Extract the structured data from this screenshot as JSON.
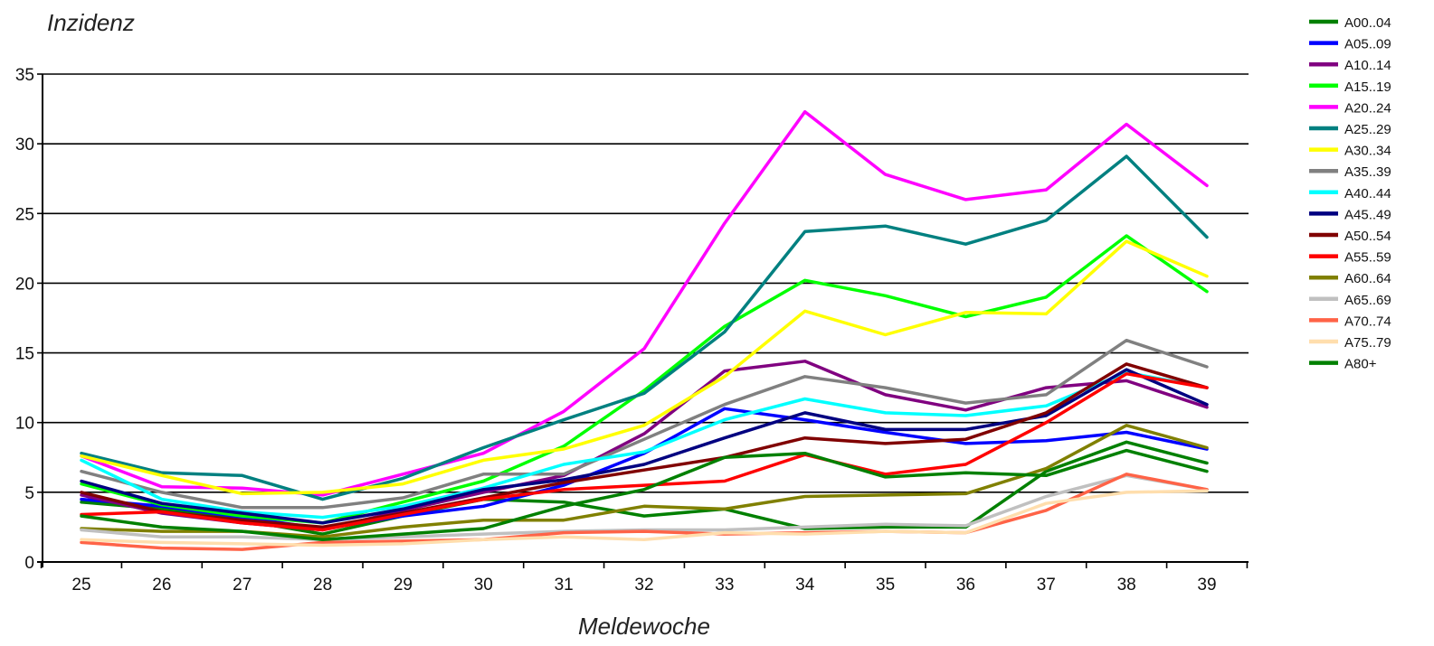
{
  "chart_data": {
    "type": "line",
    "title": "",
    "xlabel": "Meldewoche",
    "ylabel": "Inzidenz",
    "x": [
      25,
      26,
      27,
      28,
      29,
      30,
      31,
      32,
      33,
      34,
      35,
      36,
      37,
      38,
      39
    ],
    "ylim": [
      0,
      35
    ],
    "yticks": [
      0,
      5,
      10,
      15,
      20,
      25,
      30,
      35
    ],
    "grid": "horizontal",
    "legend_position": "right",
    "series": [
      {
        "name": "A00..04",
        "color": "#008000",
        "values": [
          4.3,
          3.8,
          3.0,
          2.0,
          3.3,
          4.5,
          4.3,
          3.3,
          3.8,
          2.4,
          2.5,
          2.5,
          6.5,
          8.6,
          7.1
        ]
      },
      {
        "name": "A05..09",
        "color": "#0000FF",
        "values": [
          4.5,
          4.0,
          3.2,
          2.4,
          3.3,
          4.0,
          5.5,
          7.8,
          11.0,
          10.2,
          9.3,
          8.5,
          8.7,
          9.3,
          8.1
        ]
      },
      {
        "name": "A10..14",
        "color": "#800080",
        "values": [
          4.8,
          3.5,
          2.8,
          2.3,
          3.7,
          5.0,
          6.2,
          9.2,
          13.7,
          14.4,
          12.0,
          10.9,
          12.5,
          13.0,
          11.1
        ]
      },
      {
        "name": "A15..19",
        "color": "#00FF00",
        "values": [
          5.6,
          4.1,
          3.3,
          2.8,
          4.3,
          5.8,
          8.3,
          12.3,
          16.9,
          20.2,
          19.1,
          17.6,
          19.0,
          23.4,
          19.4
        ]
      },
      {
        "name": "A20..24",
        "color": "#FF00FF",
        "values": [
          7.6,
          5.4,
          5.3,
          4.8,
          6.3,
          7.8,
          10.8,
          15.3,
          24.3,
          32.3,
          27.8,
          26.0,
          26.7,
          31.4,
          27.0
        ]
      },
      {
        "name": "A25..29",
        "color": "#008080",
        "values": [
          7.8,
          6.4,
          6.2,
          4.5,
          6.0,
          8.2,
          10.2,
          12.1,
          16.5,
          23.7,
          24.1,
          22.8,
          24.5,
          29.1,
          23.3
        ]
      },
      {
        "name": "A30..34",
        "color": "#FFFF00",
        "values": [
          7.6,
          6.2,
          4.9,
          5.0,
          5.6,
          7.3,
          8.1,
          9.8,
          13.3,
          18.0,
          16.3,
          17.9,
          17.8,
          23.0,
          20.5
        ]
      },
      {
        "name": "A35..39",
        "color": "#808080",
        "values": [
          6.5,
          5.0,
          3.9,
          3.9,
          4.6,
          6.3,
          6.3,
          8.8,
          11.3,
          13.3,
          12.5,
          11.4,
          12.0,
          15.9,
          14.0
        ]
      },
      {
        "name": "A40..44",
        "color": "#00FFFF",
        "values": [
          7.3,
          4.5,
          3.6,
          3.2,
          4.0,
          5.3,
          7.0,
          7.9,
          10.2,
          11.7,
          10.7,
          10.5,
          11.2,
          13.6,
          12.5
        ]
      },
      {
        "name": "A45..49",
        "color": "#000080",
        "values": [
          5.8,
          4.2,
          3.5,
          2.8,
          3.8,
          5.2,
          5.9,
          7.0,
          8.9,
          10.7,
          9.5,
          9.5,
          10.5,
          13.8,
          11.3
        ]
      },
      {
        "name": "A50..54",
        "color": "#800000",
        "values": [
          5.0,
          3.6,
          3.0,
          2.5,
          3.5,
          4.6,
          5.7,
          6.6,
          7.5,
          8.9,
          8.5,
          8.8,
          10.7,
          14.2,
          12.5
        ]
      },
      {
        "name": "A55..59",
        "color": "#FF0000",
        "values": [
          3.4,
          3.6,
          2.8,
          2.3,
          3.4,
          4.5,
          5.2,
          5.5,
          5.8,
          7.7,
          6.3,
          7.0,
          10.0,
          13.5,
          12.5
        ]
      },
      {
        "name": "A60..64",
        "color": "#808000",
        "values": [
          2.4,
          2.2,
          2.2,
          1.8,
          2.5,
          3.0,
          3.0,
          4.0,
          3.8,
          4.7,
          4.8,
          4.9,
          6.7,
          9.8,
          8.2
        ]
      },
      {
        "name": "A65..69",
        "color": "#C0C0C0",
        "values": [
          2.3,
          1.8,
          1.8,
          1.6,
          1.8,
          2.0,
          2.2,
          2.3,
          2.3,
          2.5,
          2.7,
          2.6,
          4.7,
          6.2,
          5.2
        ]
      },
      {
        "name": "A70..74",
        "color": "#FF6347",
        "values": [
          1.4,
          1.0,
          0.9,
          1.4,
          1.5,
          1.6,
          2.1,
          2.2,
          2.0,
          2.1,
          2.2,
          2.1,
          3.7,
          6.3,
          5.2
        ]
      },
      {
        "name": "A75..79",
        "color": "#FFDEAD",
        "values": [
          1.6,
          1.4,
          1.3,
          1.2,
          1.3,
          1.6,
          1.8,
          1.6,
          2.1,
          2.0,
          2.2,
          2.1,
          4.2,
          5.0,
          5.1
        ]
      },
      {
        "name": "A80+",
        "color": "#008000",
        "values": [
          3.3,
          2.5,
          2.2,
          1.6,
          2.0,
          2.4,
          4.0,
          5.2,
          7.5,
          7.8,
          6.1,
          6.4,
          6.2,
          8.0,
          6.5
        ]
      }
    ]
  }
}
